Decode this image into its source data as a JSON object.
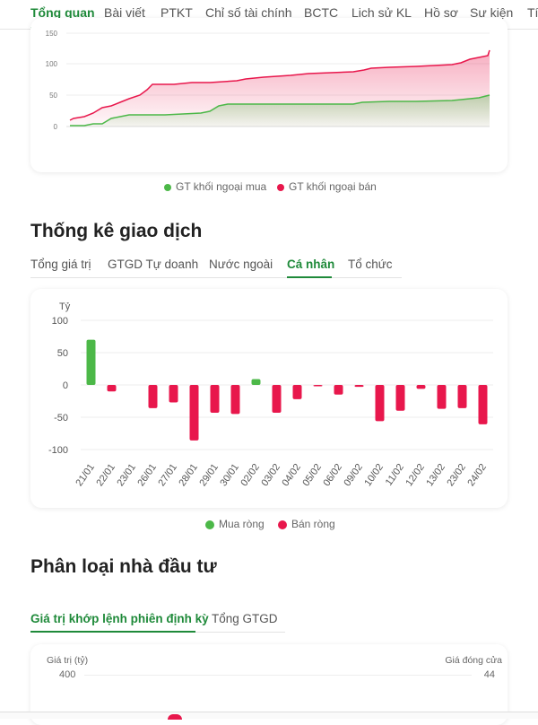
{
  "top_tabs": [
    "Tổng quan",
    "Bài viết",
    "PTKT",
    "Chỉ số tài chính",
    "BCTC",
    "Lịch sử KL",
    "Hồ sơ",
    "Sự kiện",
    "Tí"
  ],
  "foreign_chart": {
    "y_ticks": [
      "150",
      "100",
      "50",
      "0"
    ],
    "legend": [
      {
        "label": "GT khối ngoại mua",
        "color": "#4cb848"
      },
      {
        "label": "GT khối ngoại bán",
        "color": "#e8174c"
      }
    ]
  },
  "stats_section": {
    "title": "Thống kê giao dịch",
    "tabs": [
      "Tổng giá trị",
      "GTGD Tự doanh",
      "Nước ngoài",
      "Cá nhân",
      "Tổ chức"
    ],
    "active_tab": "Cá nhân"
  },
  "chart_data": {
    "type": "bar",
    "ylabel": "Tỷ",
    "ylim": [
      -100,
      100
    ],
    "y_ticks": [
      "100",
      "50",
      "0",
      "-50",
      "-100"
    ],
    "categories": [
      "21/01",
      "22/01",
      "23/01",
      "26/01",
      "27/01",
      "28/01",
      "29/01",
      "30/01",
      "02/02",
      "03/02",
      "04/02",
      "05/02",
      "06/02",
      "09/02",
      "10/02",
      "11/02",
      "12/02",
      "13/02",
      "23/02",
      "24/02"
    ],
    "values": [
      70,
      -10,
      0,
      -36,
      -27,
      -86,
      -43,
      -45,
      9,
      -43,
      -22,
      -2,
      -15,
      -3,
      -56,
      -40,
      -6,
      -37,
      -36,
      -61
    ],
    "colors": {
      "positive": "#4cb848",
      "negative": "#e8174c"
    },
    "legend": [
      {
        "label": "Mua ròng",
        "color": "#4cb848"
      },
      {
        "label": "Bán ròng",
        "color": "#e8174c"
      }
    ]
  },
  "investor_section": {
    "title": "Phân loại nhà đầu tư",
    "tabs": [
      "Giá trị khớp lệnh phiên định kỳ",
      "Tổng GTGD"
    ],
    "active_tab": "Giá trị khớp lệnh phiên định kỳ",
    "left_axis_label": "Giá trị (tỷ)",
    "right_axis_label": "Giá đóng cửa",
    "left_top_value": "400",
    "right_top_value": "44"
  }
}
